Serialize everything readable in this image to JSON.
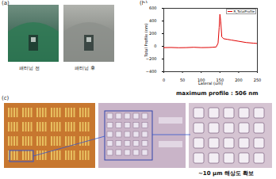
{
  "panels": {
    "a": {
      "label": "(a)",
      "images": [
        {
          "caption": "패터닝 전"
        },
        {
          "caption": "패터닝 후"
        }
      ]
    },
    "b": {
      "label": "(b)",
      "caption": "maximum profile : 506 nm"
    },
    "c": {
      "label": "(c)",
      "caption": "~10 μm 해상도 확보"
    }
  },
  "chart_data": {
    "type": "line",
    "x_label": "Lateral (um)",
    "y_label": "Total Profile (nm)",
    "x": [
      0,
      20,
      40,
      60,
      80,
      100,
      120,
      130,
      140,
      145,
      148,
      150,
      152,
      155,
      160,
      170,
      180,
      200,
      220,
      240,
      250
    ],
    "series": [
      {
        "name": "R_TotalProfile",
        "color": "#e00000",
        "values": [
          -20,
          -18,
          -22,
          -20,
          -15,
          -20,
          -18,
          -15,
          -10,
          50,
          300,
          506,
          400,
          150,
          120,
          110,
          100,
          80,
          60,
          50,
          45
        ]
      }
    ],
    "xlim": [
      0,
      250
    ],
    "xticks": [
      0,
      50,
      100,
      150,
      200,
      250
    ],
    "ylim": [
      -400,
      600
    ],
    "yticks": [
      -400,
      -200,
      0,
      200,
      400,
      600
    ],
    "grid": false,
    "legend": "top-right"
  }
}
